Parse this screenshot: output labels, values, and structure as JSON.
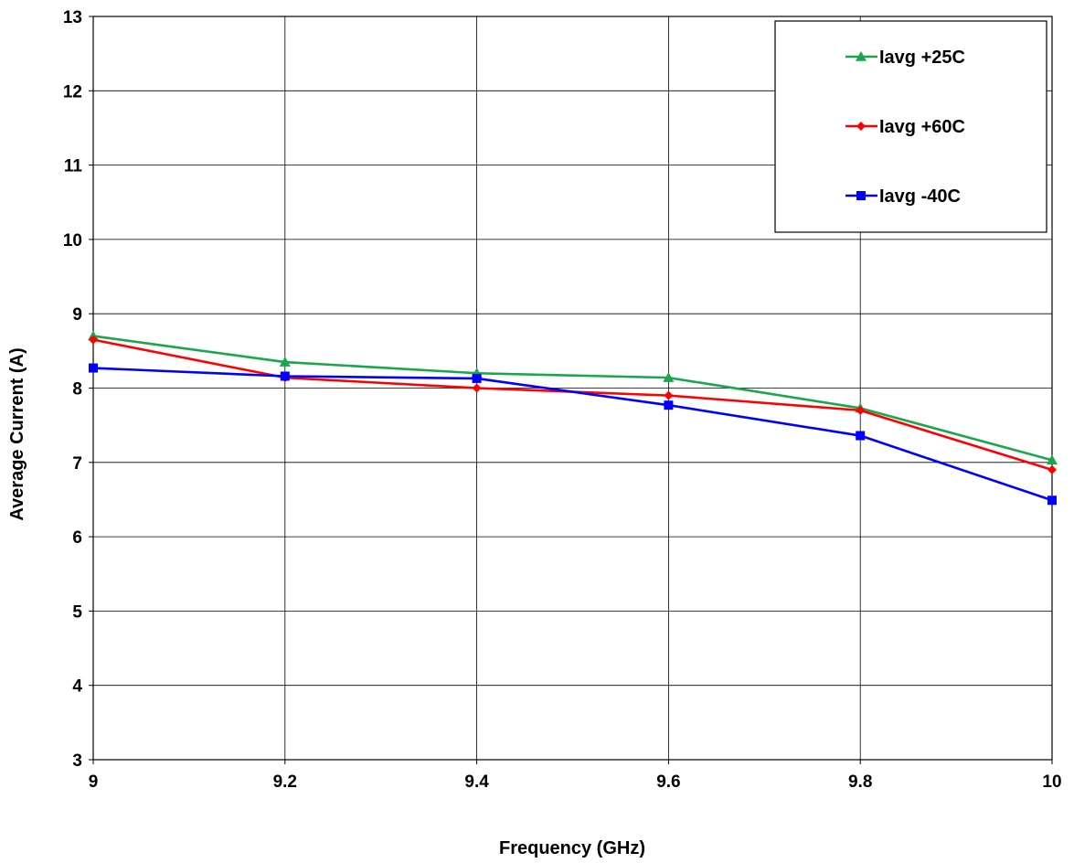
{
  "chart_data": {
    "type": "line",
    "title": "",
    "xlabel": "Frequency (GHz)",
    "ylabel": "Average Current (A)",
    "xlim": [
      9,
      10
    ],
    "ylim": [
      3,
      13
    ],
    "x_ticks": [
      "9",
      "9.2",
      "9.4",
      "9.6",
      "9.8",
      "10"
    ],
    "y_ticks": [
      "3",
      "4",
      "5",
      "6",
      "7",
      "8",
      "9",
      "10",
      "11",
      "12",
      "13"
    ],
    "grid": true,
    "legend_position": "top-right",
    "x": [
      9,
      9.2,
      9.4,
      9.6,
      9.8,
      10
    ],
    "series": [
      {
        "name": "Iavg +25C",
        "color": "#1aa64a",
        "marker": "triangle",
        "values": [
          8.7,
          8.35,
          8.2,
          8.14,
          7.73,
          7.03
        ]
      },
      {
        "name": "Iavg +60C",
        "color": "#ff0000",
        "marker": "diamond",
        "values": [
          8.65,
          8.14,
          8.0,
          7.9,
          7.7,
          6.9
        ]
      },
      {
        "name": "Iavg -40C",
        "color": "#0000ff",
        "marker": "square",
        "values": [
          8.27,
          8.16,
          8.13,
          7.77,
          7.36,
          6.49
        ]
      }
    ]
  }
}
